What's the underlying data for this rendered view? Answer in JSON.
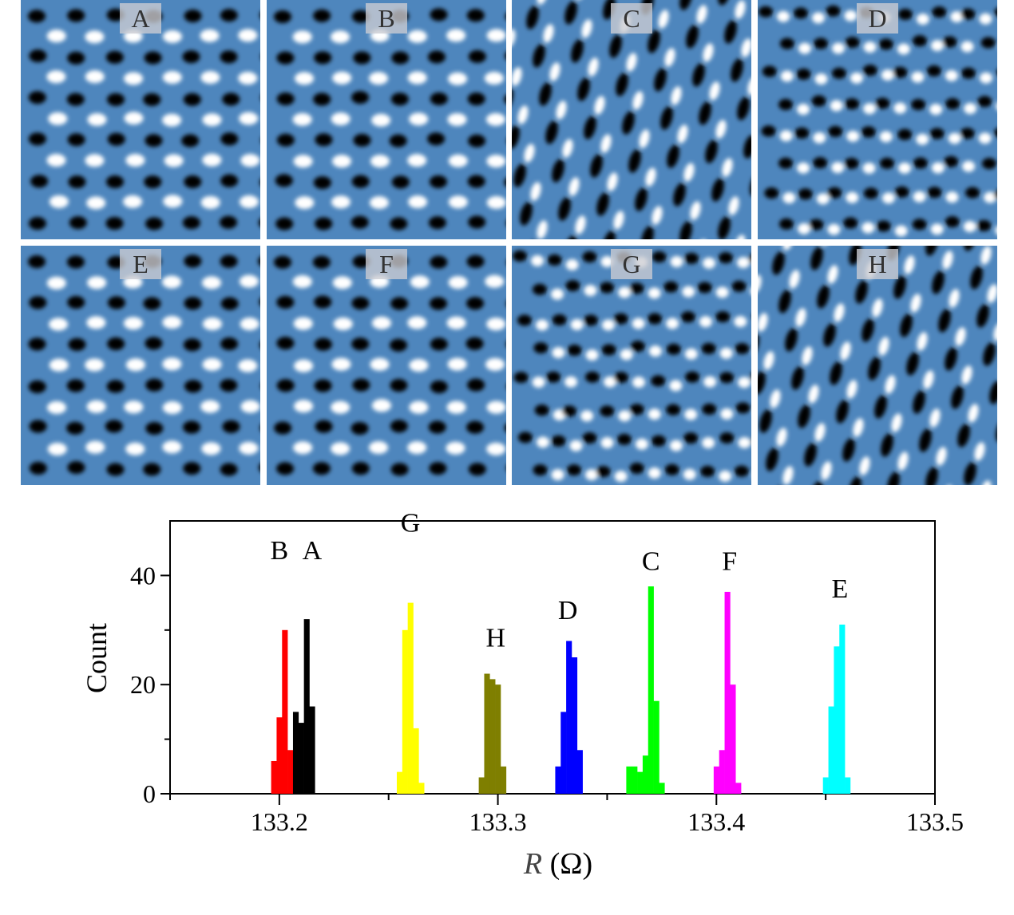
{
  "panels": [
    {
      "label": "A",
      "pattern": "rows"
    },
    {
      "label": "B",
      "pattern": "rows"
    },
    {
      "label": "C",
      "pattern": "tilted"
    },
    {
      "label": "D",
      "pattern": "scattered"
    },
    {
      "label": "E",
      "pattern": "rows"
    },
    {
      "label": "F",
      "pattern": "rows"
    },
    {
      "label": "G",
      "pattern": "scattered"
    },
    {
      "label": "H",
      "pattern": "tilted"
    }
  ],
  "chart_data": {
    "type": "bar",
    "xlabel_italic": "R",
    "xlabel_unit": " (Ω)",
    "ylabel": "Count",
    "xlim": [
      133.15,
      133.5
    ],
    "ylim": [
      0,
      50
    ],
    "xticks": [
      133.2,
      133.3,
      133.4,
      133.5
    ],
    "xtick_labels": [
      "133.2",
      "133.3",
      "133.4",
      "133.5"
    ],
    "yticks": [
      0,
      20,
      40
    ],
    "ytick_labels": [
      "0",
      "20",
      "40"
    ],
    "bin_width": 0.0025,
    "series": [
      {
        "name": "B",
        "color": "#ff0000",
        "bins": [
          [
            133.1975,
            6
          ],
          [
            133.2,
            14
          ],
          [
            133.2025,
            30
          ],
          [
            133.205,
            8
          ]
        ],
        "label_x": 133.2,
        "label_y": 43
      },
      {
        "name": "A",
        "color": "#000000",
        "bins": [
          [
            133.2075,
            15
          ],
          [
            133.21,
            13
          ],
          [
            133.2125,
            32
          ],
          [
            133.215,
            16
          ]
        ],
        "label_x": 133.215,
        "label_y": 43
      },
      {
        "name": "G",
        "color": "#ffff00",
        "bins": [
          [
            133.255,
            4
          ],
          [
            133.2575,
            30
          ],
          [
            133.26,
            35
          ],
          [
            133.2625,
            12
          ],
          [
            133.265,
            2
          ]
        ],
        "label_x": 133.26,
        "label_y": 48
      },
      {
        "name": "H",
        "color": "#7f7f00",
        "bins": [
          [
            133.2925,
            3
          ],
          [
            133.295,
            22
          ],
          [
            133.2975,
            21
          ],
          [
            133.3,
            20
          ],
          [
            133.3025,
            5
          ]
        ],
        "label_x": 133.299,
        "label_y": 27
      },
      {
        "name": "D",
        "color": "#0000ff",
        "bins": [
          [
            133.3275,
            5
          ],
          [
            133.33,
            15
          ],
          [
            133.3325,
            28
          ],
          [
            133.335,
            25
          ],
          [
            133.3375,
            8
          ]
        ],
        "label_x": 133.332,
        "label_y": 32
      },
      {
        "name": "C",
        "color": "#00ff00",
        "bins": [
          [
            133.36,
            5
          ],
          [
            133.3625,
            5
          ],
          [
            133.365,
            4
          ],
          [
            133.3675,
            7
          ],
          [
            133.37,
            38
          ],
          [
            133.3725,
            17
          ],
          [
            133.375,
            2
          ]
        ],
        "label_x": 133.37,
        "label_y": 41
      },
      {
        "name": "F",
        "color": "#ff00ff",
        "bins": [
          [
            133.4,
            5
          ],
          [
            133.4025,
            8
          ],
          [
            133.405,
            37
          ],
          [
            133.4075,
            20
          ],
          [
            133.41,
            2
          ]
        ],
        "label_x": 133.406,
        "label_y": 41
      },
      {
        "name": "E",
        "color": "#00ffff",
        "bins": [
          [
            133.45,
            3
          ],
          [
            133.4525,
            16
          ],
          [
            133.455,
            27
          ],
          [
            133.4575,
            31
          ],
          [
            133.46,
            3
          ]
        ],
        "label_x": 133.4565,
        "label_y": 36
      }
    ]
  }
}
